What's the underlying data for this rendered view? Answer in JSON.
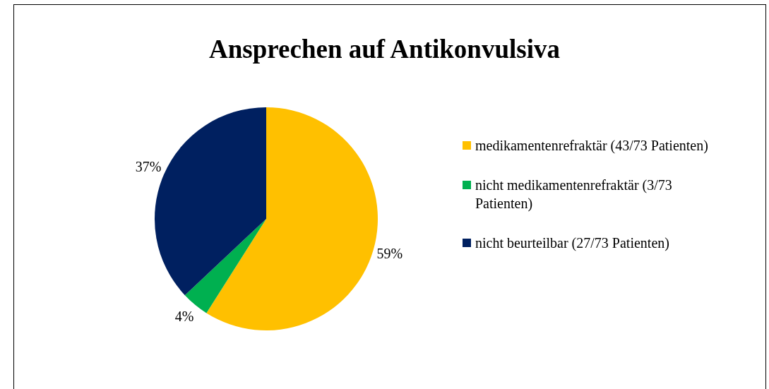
{
  "chart_data": {
    "type": "pie",
    "title": "Ansprechen auf Antikonvulsiva",
    "categories": [
      "medikamentenrefraktär (43/73 Patienten)",
      "nicht medikamentenrefraktär (3/73 Patienten)",
      "nicht beurteilbar (27/73 Patienten)"
    ],
    "values": [
      59,
      4,
      37
    ],
    "colors": [
      "#ffc000",
      "#00b050",
      "#002060"
    ],
    "value_labels": [
      "59%",
      "4%",
      "37%"
    ],
    "legend": "right"
  }
}
